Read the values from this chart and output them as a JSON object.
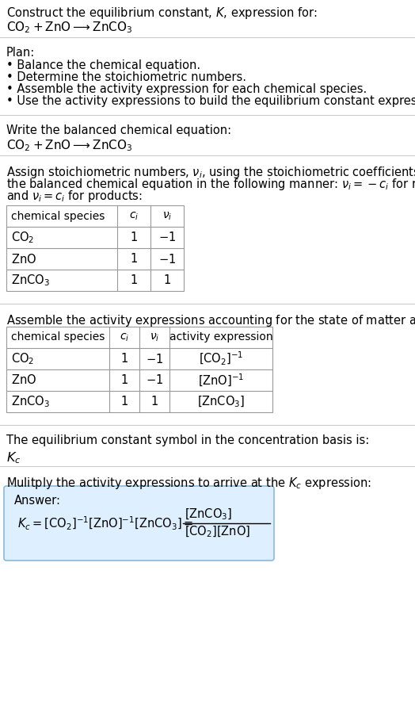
{
  "title_line1": "Construct the equilibrium constant, $K$, expression for:",
  "title_line2": "$\\mathrm{CO_2 + ZnO \\longrightarrow ZnCO_3}$",
  "plan_header": "Plan:",
  "plan_bullets": [
    "• Balance the chemical equation.",
    "• Determine the stoichiometric numbers.",
    "• Assemble the activity expression for each chemical species.",
    "• Use the activity expressions to build the equilibrium constant expression."
  ],
  "balanced_eq_header": "Write the balanced chemical equation:",
  "balanced_eq": "$\\mathrm{CO_2 + ZnO \\longrightarrow ZnCO_3}$",
  "stoich_intro_lines": [
    "Assign stoichiometric numbers, $\\nu_i$, using the stoichiometric coefficients, $c_i$, from",
    "the balanced chemical equation in the following manner: $\\nu_i = -c_i$ for reactants",
    "and $\\nu_i = c_i$ for products:"
  ],
  "table1_headers": [
    "chemical species",
    "$c_i$",
    "$\\nu_i$"
  ],
  "table1_rows": [
    [
      "$\\mathrm{CO_2}$",
      "1",
      "$-1$"
    ],
    [
      "$\\mathrm{ZnO}$",
      "1",
      "$-1$"
    ],
    [
      "$\\mathrm{ZnCO_3}$",
      "1",
      "1"
    ]
  ],
  "assemble_intro": "Assemble the activity expressions accounting for the state of matter and $\\nu_i$:",
  "table2_headers": [
    "chemical species",
    "$c_i$",
    "$\\nu_i$",
    "activity expression"
  ],
  "table2_rows": [
    [
      "$\\mathrm{CO_2}$",
      "1",
      "$-1$",
      "$[\\mathrm{CO_2}]^{-1}$"
    ],
    [
      "$\\mathrm{ZnO}$",
      "1",
      "$-1$",
      "$[\\mathrm{ZnO}]^{-1}$"
    ],
    [
      "$\\mathrm{ZnCO_3}$",
      "1",
      "1",
      "$[\\mathrm{ZnCO_3}]$"
    ]
  ],
  "kc_intro": "The equilibrium constant symbol in the concentration basis is:",
  "kc_symbol": "$K_c$",
  "multiply_intro": "Mulitply the activity expressions to arrive at the $K_c$ expression:",
  "answer_box_color": "#def0ff",
  "answer_border_color": "#88bbdd",
  "answer_label": "Answer:",
  "bg_color": "#ffffff",
  "text_color": "#000000",
  "sep_line_color": "#cccccc",
  "table_line_color": "#999999",
  "font_size": 10.5
}
